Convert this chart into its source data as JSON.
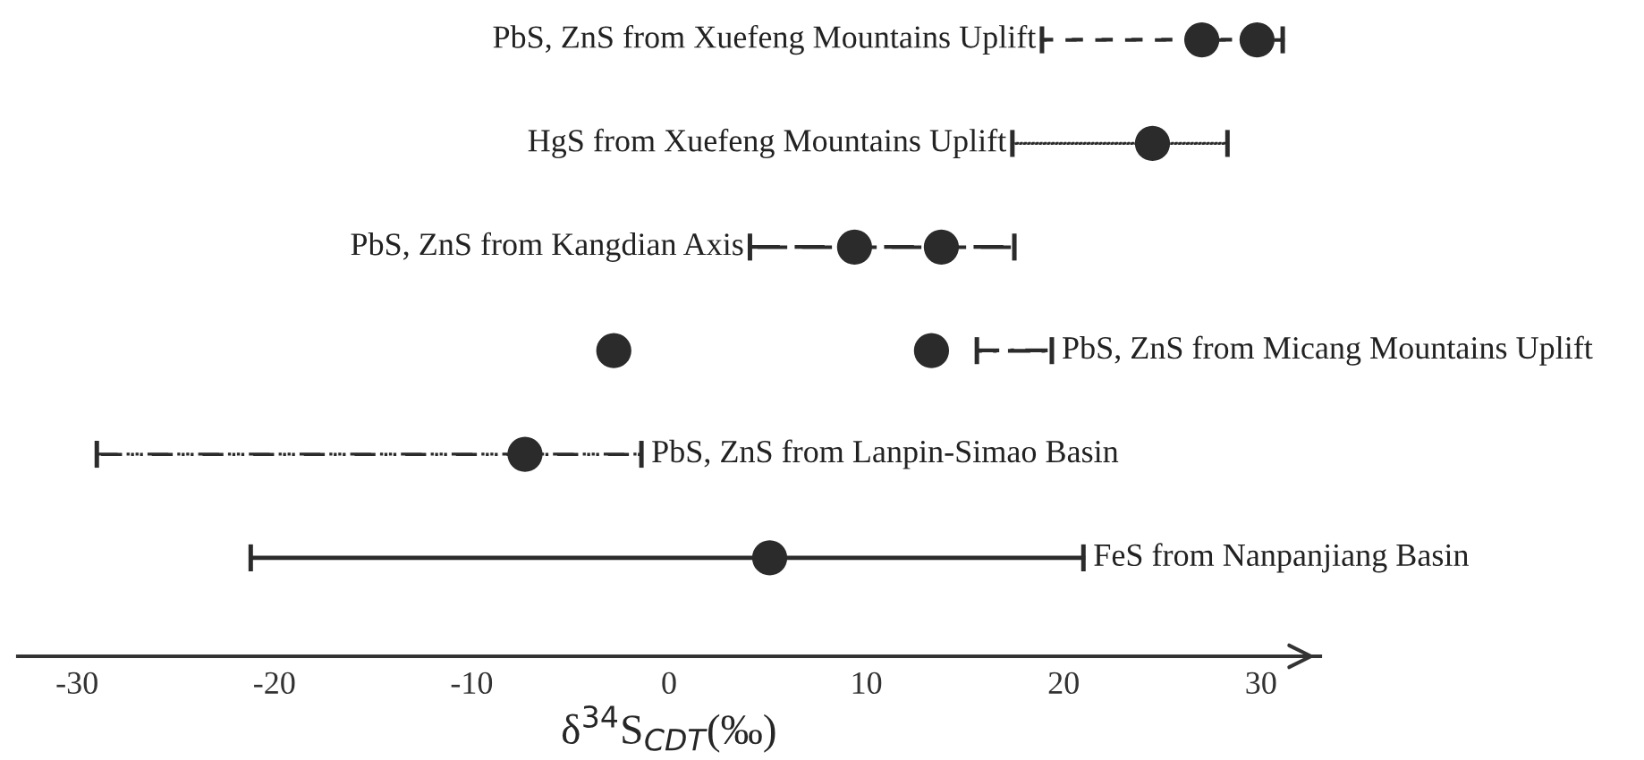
{
  "chart_data": {
    "type": "bar",
    "orientation": "horizontal",
    "categories": [
      "PbS, ZnS from Xuefeng Mountains Uplift",
      "HgS from Xuefeng Mountains Uplift",
      "PbS, ZnS from Kangdian Axis",
      "PbS, ZnS from Micang Mountains Uplift",
      "PbS, ZnS from Lanpin-Simao Basin",
      "FeS from Nanpanjiang Basin"
    ],
    "base": [
      18.9,
      17.4,
      4.1,
      15.6,
      -29.0,
      -21.2
    ],
    "values": [
      12.2,
      10.9,
      13.4,
      3.8,
      27.6,
      42.2
    ],
    "color": "#2b2b2b",
    "series": [
      {
        "type": "scatter",
        "x": [
          "PbS, ZnS from Xuefeng Mountains Uplift",
          "HgS from Xuefeng Mountains Uplift",
          "PbS, ZnS from Kangdian Axis",
          "PbS, ZnS from Micang Mountains Uplift",
          "PbS, ZnS from Lanpin-Simao Basin",
          "FeS from Nanpanjiang Basin"
        ],
        "values": [
          27.0,
          24.5,
          9.4,
          -2.8,
          -7.3,
          5.1
        ],
        "color": "#2b2b2b"
      },
      {
        "type": "scatter",
        "x": [
          "PbS, ZnS from Xuefeng Mountains Uplift",
          "HgS from Xuefeng Mountains Uplift",
          "PbS, ZnS from Kangdian Axis",
          "PbS, ZnS from Micang Mountains Uplift",
          "PbS, ZnS from Lanpin-Simao Basin",
          "FeS from Nanpanjiang Basin"
        ],
        "values": [
          29.8,
          null,
          13.8,
          13.3,
          null,
          null
        ],
        "color": "#2b2b2b"
      }
    ],
    "xlabel": "δ$^{34}$S$_{CDT}$(‰)",
    "xlim": [
      -33,
      33
    ],
    "xticks": [
      -30,
      -20,
      -10,
      0,
      10,
      20,
      30
    ],
    "marker": "circle",
    "grid": false,
    "legend": false
  }
}
